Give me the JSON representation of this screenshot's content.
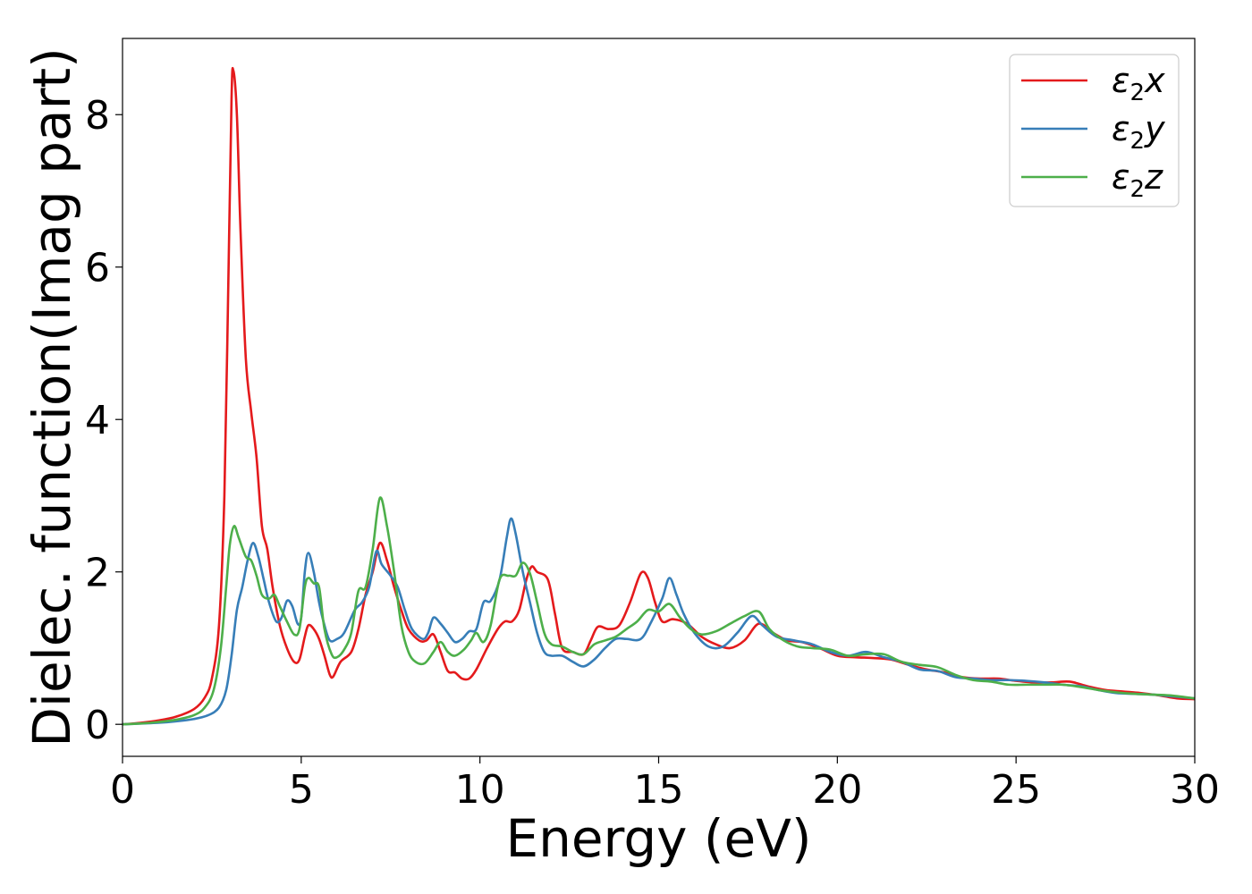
{
  "chart_data": {
    "type": "line",
    "xlabel": "Energy (eV)",
    "ylabel": "Dielec. function(Imag part)",
    "xlim": [
      0,
      30
    ],
    "ylim": [
      -0.42,
      9.0
    ],
    "xticks": [
      0,
      5,
      10,
      15,
      20,
      25,
      30
    ],
    "yticks": [
      0,
      2,
      4,
      6,
      8
    ],
    "grid": false,
    "legend_position": "top-right",
    "series": [
      {
        "name": "ε2x",
        "legend_base": "ε",
        "legend_sub": "2",
        "legend_axis": "x",
        "color": "#e41a1c",
        "points": [
          [
            0,
            0
          ],
          [
            0.5,
            0.02
          ],
          [
            1.0,
            0.05
          ],
          [
            1.5,
            0.1
          ],
          [
            2.0,
            0.2
          ],
          [
            2.3,
            0.35
          ],
          [
            2.5,
            0.6
          ],
          [
            2.7,
            1.3
          ],
          [
            2.85,
            3.0
          ],
          [
            2.95,
            5.5
          ],
          [
            3.05,
            8.2
          ],
          [
            3.1,
            8.58
          ],
          [
            3.2,
            8.0
          ],
          [
            3.3,
            6.5
          ],
          [
            3.45,
            4.8
          ],
          [
            3.6,
            4.1
          ],
          [
            3.75,
            3.5
          ],
          [
            3.9,
            2.6
          ],
          [
            4.05,
            2.3
          ],
          [
            4.2,
            1.8
          ],
          [
            4.4,
            1.3
          ],
          [
            4.6,
            1.0
          ],
          [
            4.8,
            0.82
          ],
          [
            4.95,
            0.85
          ],
          [
            5.1,
            1.15
          ],
          [
            5.2,
            1.3
          ],
          [
            5.35,
            1.25
          ],
          [
            5.5,
            1.12
          ],
          [
            5.65,
            0.9
          ],
          [
            5.8,
            0.65
          ],
          [
            5.9,
            0.63
          ],
          [
            6.1,
            0.82
          ],
          [
            6.4,
            0.95
          ],
          [
            6.6,
            1.25
          ],
          [
            6.8,
            1.7
          ],
          [
            7.0,
            2.0
          ],
          [
            7.2,
            2.38
          ],
          [
            7.4,
            2.15
          ],
          [
            7.6,
            1.8
          ],
          [
            7.8,
            1.5
          ],
          [
            8.0,
            1.25
          ],
          [
            8.3,
            1.1
          ],
          [
            8.5,
            1.1
          ],
          [
            8.7,
            1.18
          ],
          [
            8.9,
            0.95
          ],
          [
            9.1,
            0.7
          ],
          [
            9.3,
            0.68
          ],
          [
            9.5,
            0.6
          ],
          [
            9.7,
            0.6
          ],
          [
            9.9,
            0.72
          ],
          [
            10.2,
            1.0
          ],
          [
            10.5,
            1.25
          ],
          [
            10.7,
            1.35
          ],
          [
            10.9,
            1.35
          ],
          [
            11.1,
            1.5
          ],
          [
            11.3,
            1.9
          ],
          [
            11.45,
            2.07
          ],
          [
            11.6,
            2.0
          ],
          [
            11.9,
            1.9
          ],
          [
            12.1,
            1.45
          ],
          [
            12.3,
            1.0
          ],
          [
            12.6,
            0.95
          ],
          [
            12.9,
            0.92
          ],
          [
            13.1,
            1.1
          ],
          [
            13.3,
            1.28
          ],
          [
            13.6,
            1.25
          ],
          [
            13.9,
            1.3
          ],
          [
            14.2,
            1.6
          ],
          [
            14.5,
            1.98
          ],
          [
            14.7,
            1.92
          ],
          [
            14.9,
            1.6
          ],
          [
            15.1,
            1.35
          ],
          [
            15.4,
            1.38
          ],
          [
            15.8,
            1.32
          ],
          [
            16.2,
            1.15
          ],
          [
            16.6,
            1.05
          ],
          [
            17.0,
            1.0
          ],
          [
            17.4,
            1.1
          ],
          [
            17.8,
            1.32
          ],
          [
            18.2,
            1.2
          ],
          [
            18.6,
            1.1
          ],
          [
            19.0,
            1.08
          ],
          [
            19.5,
            1.0
          ],
          [
            20.0,
            0.9
          ],
          [
            20.5,
            0.88
          ],
          [
            21.0,
            0.87
          ],
          [
            21.5,
            0.85
          ],
          [
            22.0,
            0.78
          ],
          [
            22.5,
            0.72
          ],
          [
            23.0,
            0.68
          ],
          [
            23.5,
            0.62
          ],
          [
            24.0,
            0.6
          ],
          [
            24.5,
            0.6
          ],
          [
            25.0,
            0.57
          ],
          [
            25.5,
            0.55
          ],
          [
            26.0,
            0.55
          ],
          [
            26.5,
            0.56
          ],
          [
            27.0,
            0.5
          ],
          [
            27.5,
            0.45
          ],
          [
            28.0,
            0.43
          ],
          [
            28.5,
            0.41
          ],
          [
            29.0,
            0.38
          ],
          [
            29.5,
            0.34
          ],
          [
            30.0,
            0.33
          ]
        ]
      },
      {
        "name": "ε2y",
        "legend_base": "ε",
        "legend_sub": "2",
        "legend_axis": "y",
        "color": "#377eb8",
        "points": [
          [
            0,
            0
          ],
          [
            0.5,
            0.01
          ],
          [
            1.0,
            0.02
          ],
          [
            1.5,
            0.04
          ],
          [
            2.0,
            0.07
          ],
          [
            2.4,
            0.12
          ],
          [
            2.7,
            0.22
          ],
          [
            2.9,
            0.45
          ],
          [
            3.05,
            0.9
          ],
          [
            3.2,
            1.5
          ],
          [
            3.35,
            1.8
          ],
          [
            3.5,
            2.15
          ],
          [
            3.65,
            2.38
          ],
          [
            3.8,
            2.2
          ],
          [
            3.95,
            1.9
          ],
          [
            4.1,
            1.6
          ],
          [
            4.3,
            1.35
          ],
          [
            4.45,
            1.4
          ],
          [
            4.6,
            1.62
          ],
          [
            4.75,
            1.55
          ],
          [
            4.9,
            1.32
          ],
          [
            5.0,
            1.4
          ],
          [
            5.1,
            2.0
          ],
          [
            5.2,
            2.25
          ],
          [
            5.35,
            2.0
          ],
          [
            5.5,
            1.6
          ],
          [
            5.65,
            1.3
          ],
          [
            5.8,
            1.1
          ],
          [
            6.0,
            1.12
          ],
          [
            6.2,
            1.2
          ],
          [
            6.5,
            1.5
          ],
          [
            6.7,
            1.6
          ],
          [
            6.9,
            1.8
          ],
          [
            7.1,
            2.27
          ],
          [
            7.25,
            2.1
          ],
          [
            7.5,
            1.95
          ],
          [
            7.7,
            1.8
          ],
          [
            7.9,
            1.5
          ],
          [
            8.1,
            1.25
          ],
          [
            8.4,
            1.12
          ],
          [
            8.55,
            1.2
          ],
          [
            8.7,
            1.4
          ],
          [
            8.9,
            1.32
          ],
          [
            9.1,
            1.2
          ],
          [
            9.3,
            1.08
          ],
          [
            9.5,
            1.12
          ],
          [
            9.7,
            1.22
          ],
          [
            9.9,
            1.25
          ],
          [
            10.1,
            1.6
          ],
          [
            10.3,
            1.62
          ],
          [
            10.55,
            1.9
          ],
          [
            10.75,
            2.45
          ],
          [
            10.87,
            2.7
          ],
          [
            11.0,
            2.5
          ],
          [
            11.2,
            2.0
          ],
          [
            11.4,
            1.6
          ],
          [
            11.6,
            1.2
          ],
          [
            11.8,
            0.95
          ],
          [
            12.0,
            0.9
          ],
          [
            12.3,
            0.9
          ],
          [
            12.6,
            0.82
          ],
          [
            12.9,
            0.76
          ],
          [
            13.2,
            0.85
          ],
          [
            13.5,
            1.0
          ],
          [
            13.8,
            1.12
          ],
          [
            14.1,
            1.12
          ],
          [
            14.5,
            1.12
          ],
          [
            14.8,
            1.35
          ],
          [
            15.1,
            1.65
          ],
          [
            15.3,
            1.92
          ],
          [
            15.5,
            1.7
          ],
          [
            15.7,
            1.45
          ],
          [
            16.0,
            1.2
          ],
          [
            16.4,
            1.02
          ],
          [
            16.8,
            1.02
          ],
          [
            17.2,
            1.2
          ],
          [
            17.6,
            1.42
          ],
          [
            17.9,
            1.3
          ],
          [
            18.3,
            1.15
          ],
          [
            18.8,
            1.1
          ],
          [
            19.3,
            1.05
          ],
          [
            19.8,
            0.95
          ],
          [
            20.3,
            0.9
          ],
          [
            20.8,
            0.95
          ],
          [
            21.3,
            0.88
          ],
          [
            21.8,
            0.82
          ],
          [
            22.3,
            0.72
          ],
          [
            22.8,
            0.7
          ],
          [
            23.3,
            0.62
          ],
          [
            23.8,
            0.6
          ],
          [
            24.3,
            0.58
          ],
          [
            24.8,
            0.58
          ],
          [
            25.3,
            0.57
          ],
          [
            25.8,
            0.55
          ],
          [
            26.3,
            0.52
          ],
          [
            26.8,
            0.5
          ],
          [
            27.3,
            0.45
          ],
          [
            27.8,
            0.41
          ],
          [
            28.3,
            0.4
          ],
          [
            28.8,
            0.39
          ],
          [
            29.3,
            0.37
          ],
          [
            30.0,
            0.34
          ]
        ]
      },
      {
        "name": "ε2z",
        "legend_base": "ε",
        "legend_sub": "2",
        "legend_axis": "z",
        "color": "#4daf4a",
        "points": [
          [
            0,
            0
          ],
          [
            0.5,
            0.01
          ],
          [
            1.0,
            0.03
          ],
          [
            1.5,
            0.06
          ],
          [
            2.0,
            0.12
          ],
          [
            2.3,
            0.22
          ],
          [
            2.55,
            0.45
          ],
          [
            2.75,
            1.0
          ],
          [
            2.9,
            1.8
          ],
          [
            3.0,
            2.35
          ],
          [
            3.12,
            2.6
          ],
          [
            3.25,
            2.45
          ],
          [
            3.45,
            2.2
          ],
          [
            3.6,
            2.15
          ],
          [
            3.75,
            1.95
          ],
          [
            3.9,
            1.7
          ],
          [
            4.1,
            1.65
          ],
          [
            4.25,
            1.7
          ],
          [
            4.4,
            1.55
          ],
          [
            4.6,
            1.35
          ],
          [
            4.8,
            1.18
          ],
          [
            4.95,
            1.25
          ],
          [
            5.1,
            1.8
          ],
          [
            5.2,
            1.92
          ],
          [
            5.35,
            1.85
          ],
          [
            5.5,
            1.8
          ],
          [
            5.65,
            1.25
          ],
          [
            5.85,
            0.92
          ],
          [
            6.0,
            0.88
          ],
          [
            6.2,
            0.98
          ],
          [
            6.4,
            1.2
          ],
          [
            6.6,
            1.75
          ],
          [
            6.8,
            1.8
          ],
          [
            7.0,
            2.3
          ],
          [
            7.2,
            2.97
          ],
          [
            7.4,
            2.6
          ],
          [
            7.6,
            2.0
          ],
          [
            7.8,
            1.3
          ],
          [
            8.0,
            0.95
          ],
          [
            8.2,
            0.82
          ],
          [
            8.45,
            0.8
          ],
          [
            8.7,
            0.95
          ],
          [
            8.9,
            1.08
          ],
          [
            9.1,
            0.95
          ],
          [
            9.3,
            0.9
          ],
          [
            9.55,
            0.98
          ],
          [
            9.75,
            1.1
          ],
          [
            9.9,
            1.2
          ],
          [
            10.1,
            1.08
          ],
          [
            10.3,
            1.3
          ],
          [
            10.55,
            1.9
          ],
          [
            10.8,
            1.95
          ],
          [
            11.0,
            1.95
          ],
          [
            11.2,
            2.12
          ],
          [
            11.4,
            1.98
          ],
          [
            11.6,
            1.6
          ],
          [
            11.8,
            1.2
          ],
          [
            12.0,
            1.05
          ],
          [
            12.3,
            1.02
          ],
          [
            12.6,
            0.95
          ],
          [
            12.9,
            0.92
          ],
          [
            13.2,
            1.05
          ],
          [
            13.5,
            1.1
          ],
          [
            13.8,
            1.15
          ],
          [
            14.1,
            1.25
          ],
          [
            14.4,
            1.35
          ],
          [
            14.7,
            1.5
          ],
          [
            15.0,
            1.48
          ],
          [
            15.3,
            1.58
          ],
          [
            15.6,
            1.4
          ],
          [
            15.9,
            1.25
          ],
          [
            16.2,
            1.18
          ],
          [
            16.6,
            1.22
          ],
          [
            17.0,
            1.32
          ],
          [
            17.4,
            1.42
          ],
          [
            17.8,
            1.48
          ],
          [
            18.1,
            1.25
          ],
          [
            18.5,
            1.1
          ],
          [
            18.9,
            1.02
          ],
          [
            19.3,
            1.0
          ],
          [
            19.8,
            0.98
          ],
          [
            20.3,
            0.9
          ],
          [
            20.8,
            0.92
          ],
          [
            21.3,
            0.92
          ],
          [
            21.8,
            0.82
          ],
          [
            22.3,
            0.78
          ],
          [
            22.8,
            0.75
          ],
          [
            23.3,
            0.65
          ],
          [
            23.8,
            0.58
          ],
          [
            24.3,
            0.56
          ],
          [
            24.8,
            0.52
          ],
          [
            25.3,
            0.52
          ],
          [
            25.8,
            0.52
          ],
          [
            26.3,
            0.52
          ],
          [
            26.8,
            0.49
          ],
          [
            27.3,
            0.45
          ],
          [
            27.8,
            0.42
          ],
          [
            28.3,
            0.4
          ],
          [
            28.8,
            0.39
          ],
          [
            29.3,
            0.38
          ],
          [
            30.0,
            0.34
          ]
        ]
      }
    ]
  }
}
